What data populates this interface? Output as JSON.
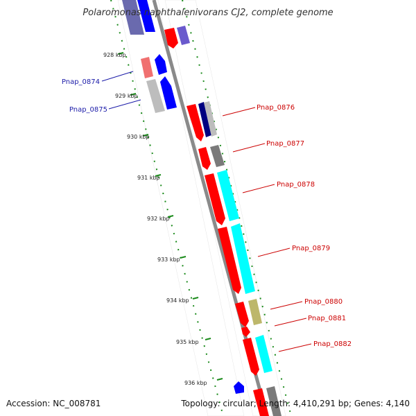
{
  "title": "Polaromonas naphthalenivorans CJ2, complete genome",
  "footer": {
    "accession": "Accession: NC_008781",
    "summary": "Topology: circular; Length: 4,410,291 bp; Genes: 4,140"
  },
  "colors": {
    "backbone": "#8c8c8c",
    "dotted_ring": "#1a8a1a",
    "label_blue": "#1a1aa8",
    "label_red": "#cc0000",
    "red": "#ff0000",
    "cyan": "#00ffff",
    "blue": "#0000ff",
    "navy": "#000080",
    "gray": "#7a7a7a",
    "silver": "#bdbdbd",
    "pink": "#f07070",
    "khaki": "#bdb76b",
    "slate": "#6a5acd"
  },
  "ticks": [
    "928 kbp",
    "929 kbp",
    "930 kbp",
    "931 kbp",
    "932 kbp",
    "933 kbp",
    "934 kbp",
    "935 kbp",
    "936 kbp"
  ],
  "labels": [
    {
      "text": "Pnap_0874",
      "color": "blue"
    },
    {
      "text": "Pnap_0875",
      "color": "blue"
    },
    {
      "text": "Pnap_0876",
      "color": "red"
    },
    {
      "text": "Pnap_0877",
      "color": "red"
    },
    {
      "text": "Pnap_0878",
      "color": "red"
    },
    {
      "text": "Pnap_0879",
      "color": "red"
    },
    {
      "text": "Pnap_0880",
      "color": "red"
    },
    {
      "text": "Pnap_0881",
      "color": "red"
    },
    {
      "text": "Pnap_0882",
      "color": "red"
    }
  ]
}
